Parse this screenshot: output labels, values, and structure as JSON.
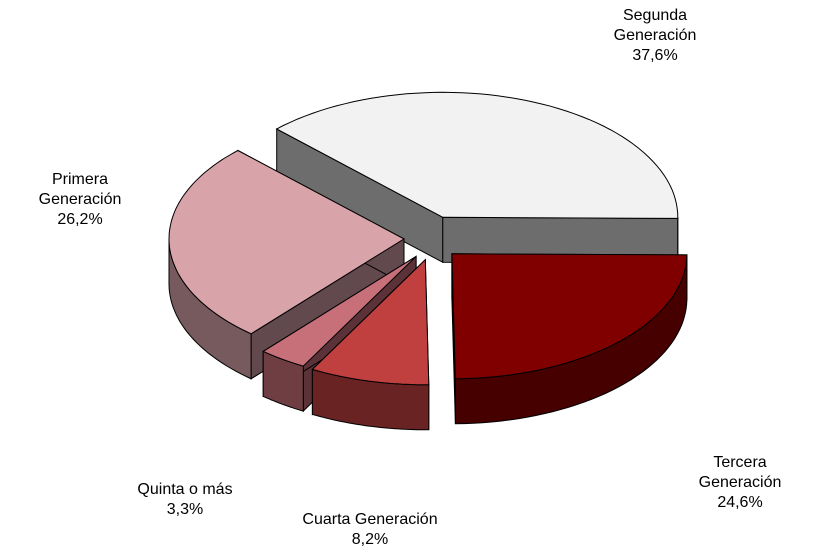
{
  "chart_data": {
    "type": "pie3d",
    "categories": [
      "Segunda Generación",
      "Tercera Generación",
      "Cuarta Generación",
      "Quinta o más",
      "Primera Generación"
    ],
    "values": [
      37.6,
      24.6,
      8.2,
      3.3,
      26.2
    ],
    "value_labels": [
      "37,6%",
      "24,6%",
      "8,2%",
      "3,3%",
      "26,2%"
    ],
    "colors": [
      "#f2f2f2",
      "#800000",
      "#c0403f",
      "#c8707a",
      "#d9a3aa"
    ]
  }
}
